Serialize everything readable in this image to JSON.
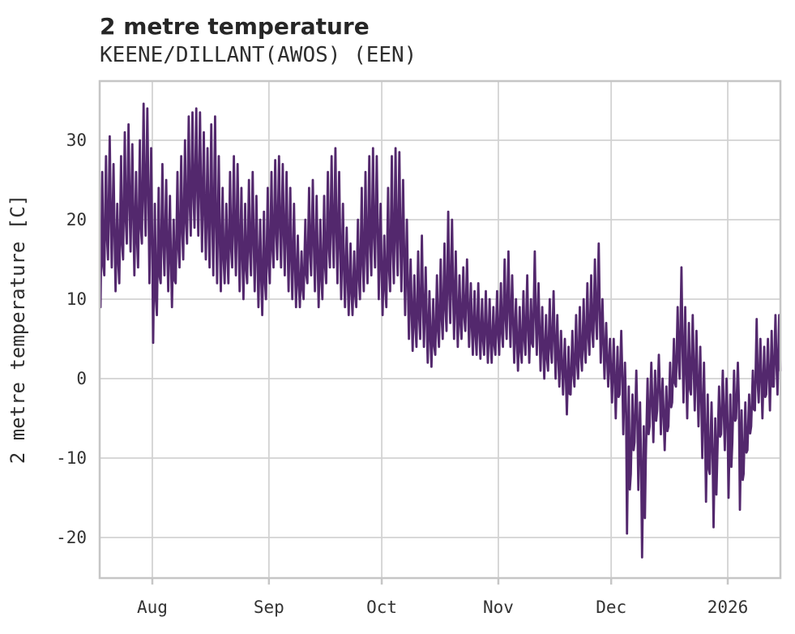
{
  "header": {
    "title": "2 metre temperature",
    "subtitle": "KEENE/DILLANT(AWOS) (EEN)"
  },
  "chart_data": {
    "type": "line",
    "title": "2 metre temperature",
    "subtitle": "KEENE/DILLANT(AWOS) (EEN)",
    "ylabel": "2 metre temperature [C]",
    "xlabel": "",
    "legend": null,
    "grid": true,
    "line_color": "#53286d",
    "grid_color": "#d2d2d2",
    "spine_color": "#c6c6c6",
    "text_color": "#333333",
    "y_ticks": [
      -20,
      -10,
      0,
      10,
      20,
      30
    ],
    "ylim": [
      -25.1,
      37.45
    ],
    "x_tick_labels": [
      "Aug",
      "Sep",
      "Oct",
      "Nov",
      "Dec",
      "2026"
    ],
    "x_tick_positions": [
      14,
      45,
      75,
      106,
      136,
      167
    ],
    "x_range": [
      0,
      181
    ],
    "x_unit": "day index along axis (ticks mark month starts)",
    "daily_min_max": [
      [
        9,
        26
      ],
      [
        13,
        28
      ],
      [
        15,
        30.5
      ],
      [
        14,
        27
      ],
      [
        11,
        22
      ],
      [
        12,
        28
      ],
      [
        15,
        31
      ],
      [
        17,
        32
      ],
      [
        16,
        29.5
      ],
      [
        13,
        26
      ],
      [
        14,
        30
      ],
      [
        17,
        34.6
      ],
      [
        18,
        34
      ],
      [
        12,
        29
      ],
      [
        4.5,
        22
      ],
      [
        8,
        24
      ],
      [
        12,
        27
      ],
      [
        13,
        25
      ],
      [
        11,
        23
      ],
      [
        9,
        20
      ],
      [
        12,
        26
      ],
      [
        14,
        28
      ],
      [
        15,
        30
      ],
      [
        17,
        33
      ],
      [
        18,
        33.5
      ],
      [
        19,
        34
      ],
      [
        18,
        33.5
      ],
      [
        16,
        31
      ],
      [
        15,
        29
      ],
      [
        14,
        32
      ],
      [
        13,
        33
      ],
      [
        12,
        28
      ],
      [
        11,
        24
      ],
      [
        12,
        22
      ],
      [
        12,
        26
      ],
      [
        14,
        28
      ],
      [
        13,
        27
      ],
      [
        11,
        24
      ],
      [
        10,
        22
      ],
      [
        12,
        25
      ],
      [
        13,
        26
      ],
      [
        11,
        23
      ],
      [
        9,
        20
      ],
      [
        8,
        21
      ],
      [
        10,
        24
      ],
      [
        12,
        26
      ],
      [
        14,
        27.5
      ],
      [
        15,
        28
      ],
      [
        14,
        27
      ],
      [
        13,
        26
      ],
      [
        11,
        24
      ],
      [
        10,
        22
      ],
      [
        9,
        18
      ],
      [
        9,
        16
      ],
      [
        10,
        20
      ],
      [
        12,
        24
      ],
      [
        13,
        25
      ],
      [
        11,
        23
      ],
      [
        9,
        20
      ],
      [
        10,
        23
      ],
      [
        12,
        26
      ],
      [
        14,
        28
      ],
      [
        14,
        29
      ],
      [
        12,
        26
      ],
      [
        10,
        22
      ],
      [
        9,
        19
      ],
      [
        8,
        17
      ],
      [
        8,
        16
      ],
      [
        9,
        20
      ],
      [
        10,
        24
      ],
      [
        11,
        26
      ],
      [
        12,
        28
      ],
      [
        13,
        29
      ],
      [
        14,
        28
      ],
      [
        10,
        22
      ],
      [
        8,
        18
      ],
      [
        9,
        24
      ],
      [
        11,
        28
      ],
      [
        12,
        29
      ],
      [
        13,
        28.5
      ],
      [
        11,
        25
      ],
      [
        8,
        20
      ],
      [
        5,
        15
      ],
      [
        3.5,
        13
      ],
      [
        4,
        16
      ],
      [
        5,
        18
      ],
      [
        4,
        14
      ],
      [
        2,
        11
      ],
      [
        1.5,
        10
      ],
      [
        3,
        13
      ],
      [
        4,
        15
      ],
      [
        5,
        17
      ],
      [
        6,
        21
      ],
      [
        7,
        20
      ],
      [
        5,
        16
      ],
      [
        4,
        13
      ],
      [
        5,
        14
      ],
      [
        6,
        15
      ],
      [
        4,
        12
      ],
      [
        3,
        11
      ],
      [
        3,
        12
      ],
      [
        2.5,
        10
      ],
      [
        3,
        11
      ],
      [
        2,
        10
      ],
      [
        2,
        9
      ],
      [
        3,
        11
      ],
      [
        3,
        12
      ],
      [
        4,
        15
      ],
      [
        5,
        16
      ],
      [
        4,
        13
      ],
      [
        2,
        10
      ],
      [
        1,
        9
      ],
      [
        2,
        11
      ],
      [
        3,
        13
      ],
      [
        2,
        10
      ],
      [
        4,
        16
      ],
      [
        3,
        12
      ],
      [
        1,
        9
      ],
      [
        0,
        8
      ],
      [
        1,
        10
      ],
      [
        2,
        11
      ],
      [
        0,
        8
      ],
      [
        -1,
        6
      ],
      [
        -2,
        5
      ],
      [
        -4.5,
        4
      ],
      [
        -2,
        6
      ],
      [
        -1,
        8
      ],
      [
        0,
        9
      ],
      [
        1,
        10
      ],
      [
        2,
        12
      ],
      [
        3,
        13
      ],
      [
        4,
        15
      ],
      [
        5,
        17
      ],
      [
        2,
        10
      ],
      [
        0,
        7
      ],
      [
        -1,
        5
      ],
      [
        -3,
        5
      ],
      [
        -5,
        4
      ],
      [
        -2,
        6
      ],
      [
        -7,
        2
      ],
      [
        -19.5,
        -1
      ],
      [
        -12,
        -2
      ],
      [
        -8,
        1
      ],
      [
        -14,
        -3
      ],
      [
        -22.5,
        -6
      ],
      [
        -10,
        0
      ],
      [
        -6,
        2
      ],
      [
        -8,
        1
      ],
      [
        -4,
        3
      ],
      [
        -7,
        0
      ],
      [
        -9,
        -1
      ],
      [
        -6,
        2
      ],
      [
        -3,
        5
      ],
      [
        -1,
        9
      ],
      [
        0,
        14
      ],
      [
        -3,
        9
      ],
      [
        -5,
        7
      ],
      [
        -2,
        8
      ],
      [
        -4,
        6
      ],
      [
        -6,
        4
      ],
      [
        -10,
        2
      ],
      [
        -15.5,
        -2
      ],
      [
        -12,
        -3
      ],
      [
        -18.7,
        -5
      ],
      [
        -10,
        -1
      ],
      [
        -7,
        1
      ],
      [
        -9,
        0
      ],
      [
        -15,
        -2
      ],
      [
        -8,
        1
      ],
      [
        -5,
        2
      ],
      [
        -16.5,
        -4
      ],
      [
        -12,
        -3
      ],
      [
        -9,
        -2
      ],
      [
        -6,
        1
      ],
      [
        -4,
        7.5
      ],
      [
        -3,
        5
      ],
      [
        -5,
        4
      ],
      [
        -2,
        5
      ],
      [
        -4,
        6
      ],
      [
        -1,
        8
      ],
      [
        -2,
        8
      ]
    ]
  }
}
